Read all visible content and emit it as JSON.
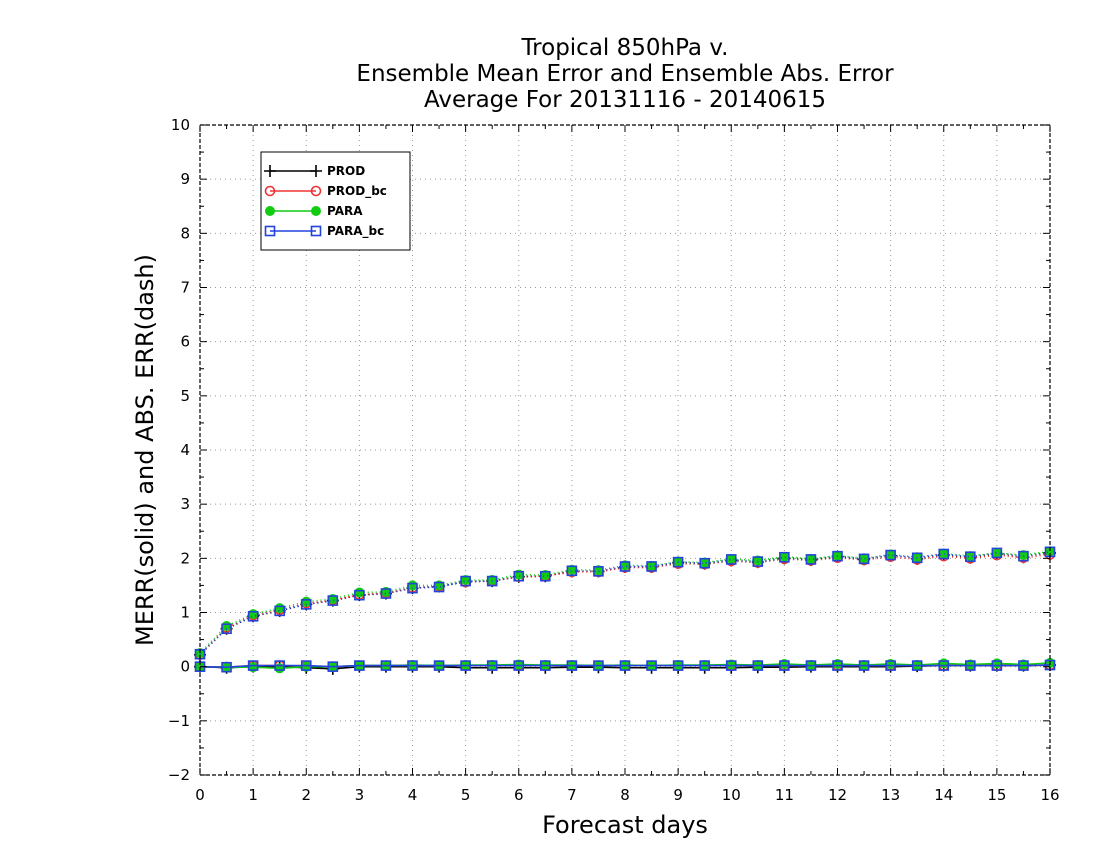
{
  "chart_data": {
    "type": "line",
    "title": [
      "Tropical 850hPa v.",
      "Ensemble Mean Error and Ensemble Abs. Error",
      "Average For 20131116 - 20140615"
    ],
    "xlabel": "Forecast days",
    "ylabel": "MERR(solid) and ABS. ERR(dash)",
    "xlim": [
      0,
      16
    ],
    "ylim": [
      -2,
      10
    ],
    "xticks": [
      "0",
      "1",
      "2",
      "3",
      "4",
      "5",
      "6",
      "7",
      "8",
      "9",
      "10",
      "11",
      "12",
      "13",
      "14",
      "15",
      "16"
    ],
    "yticks": [
      "−2",
      "−1",
      "0",
      "1",
      "2",
      "3",
      "4",
      "5",
      "6",
      "7",
      "8",
      "9",
      "10"
    ],
    "grid": true,
    "legend_position": "top-left",
    "x": [
      0,
      0.5,
      1,
      1.5,
      2,
      2.5,
      3,
      3.5,
      4,
      4.5,
      5,
      5.5,
      6,
      6.5,
      7,
      7.5,
      8,
      8.5,
      9,
      9.5,
      10,
      10.5,
      11,
      11.5,
      12,
      12.5,
      13,
      13.5,
      14,
      14.5,
      15,
      15.5,
      16
    ],
    "series": [
      {
        "name": "PROD",
        "color": "#000000",
        "marker": "plus",
        "merr": [
          0.0,
          -0.02,
          0.0,
          0.0,
          -0.02,
          -0.04,
          0.0,
          0.0,
          0.0,
          0.0,
          -0.02,
          -0.02,
          -0.02,
          -0.02,
          -0.01,
          -0.01,
          -0.02,
          -0.02,
          -0.02,
          -0.02,
          -0.02,
          -0.01,
          -0.01,
          0.0,
          0.0,
          0.0,
          0.0,
          0.01,
          0.02,
          0.02,
          0.02,
          0.02,
          0.03
        ],
        "abs_err": [
          0.22,
          0.7,
          0.93,
          1.03,
          1.15,
          1.22,
          1.32,
          1.35,
          1.45,
          1.48,
          1.57,
          1.58,
          1.66,
          1.67,
          1.76,
          1.76,
          1.84,
          1.84,
          1.92,
          1.9,
          1.96,
          1.93,
          2.0,
          1.97,
          2.03,
          1.98,
          2.05,
          1.99,
          2.06,
          2.01,
          2.08,
          2.02,
          2.1
        ]
      },
      {
        "name": "PROD_bc",
        "color": "#ee3333",
        "marker": "circle",
        "merr": [
          0.0,
          -0.01,
          0.02,
          0.02,
          0.01,
          0.0,
          0.02,
          0.02,
          0.02,
          0.02,
          0.02,
          0.02,
          0.02,
          0.02,
          0.02,
          0.02,
          0.02,
          0.02,
          0.02,
          0.02,
          0.02,
          0.02,
          0.02,
          0.02,
          0.02,
          0.02,
          0.02,
          0.02,
          0.02,
          0.02,
          0.02,
          0.02,
          0.03
        ],
        "abs_err": [
          0.22,
          0.72,
          0.95,
          1.05,
          1.17,
          1.23,
          1.33,
          1.36,
          1.46,
          1.48,
          1.56,
          1.58,
          1.66,
          1.67,
          1.75,
          1.75,
          1.83,
          1.83,
          1.9,
          1.89,
          1.95,
          1.92,
          1.99,
          1.96,
          2.01,
          1.97,
          2.03,
          1.98,
          2.04,
          2.0,
          2.06,
          2.01,
          2.07
        ]
      },
      {
        "name": "PARA",
        "color": "#11cc11",
        "marker": "dot",
        "merr": [
          0.0,
          -0.01,
          -0.01,
          -0.03,
          0.0,
          0.0,
          0.02,
          0.02,
          0.03,
          0.02,
          0.03,
          0.03,
          0.04,
          0.03,
          0.03,
          0.02,
          0.03,
          0.02,
          0.03,
          0.03,
          0.04,
          0.03,
          0.05,
          0.03,
          0.05,
          0.03,
          0.05,
          0.03,
          0.06,
          0.04,
          0.06,
          0.04,
          0.07
        ],
        "abs_err": [
          0.25,
          0.75,
          0.97,
          1.08,
          1.2,
          1.25,
          1.37,
          1.38,
          1.5,
          1.5,
          1.6,
          1.6,
          1.7,
          1.69,
          1.79,
          1.78,
          1.87,
          1.86,
          1.94,
          1.92,
          1.99,
          1.96,
          2.03,
          1.99,
          2.05,
          2.0,
          2.07,
          2.02,
          2.09,
          2.04,
          2.1,
          2.06,
          2.13
        ]
      },
      {
        "name": "PARA_bc",
        "color": "#2244dd",
        "marker": "square",
        "merr": [
          0.0,
          -0.01,
          0.02,
          0.02,
          0.02,
          0.0,
          0.02,
          0.02,
          0.02,
          0.02,
          0.02,
          0.02,
          0.02,
          0.02,
          0.02,
          0.02,
          0.02,
          0.02,
          0.02,
          0.02,
          0.02,
          0.02,
          0.02,
          0.02,
          0.02,
          0.02,
          0.02,
          0.02,
          0.02,
          0.02,
          0.02,
          0.02,
          0.03
        ],
        "abs_err": [
          0.23,
          0.7,
          0.93,
          1.03,
          1.15,
          1.22,
          1.32,
          1.35,
          1.45,
          1.47,
          1.58,
          1.58,
          1.67,
          1.67,
          1.77,
          1.76,
          1.85,
          1.85,
          1.93,
          1.91,
          1.98,
          1.94,
          2.02,
          1.98,
          2.04,
          1.99,
          2.06,
          2.01,
          2.08,
          2.03,
          2.1,
          2.04,
          2.12
        ]
      }
    ]
  }
}
